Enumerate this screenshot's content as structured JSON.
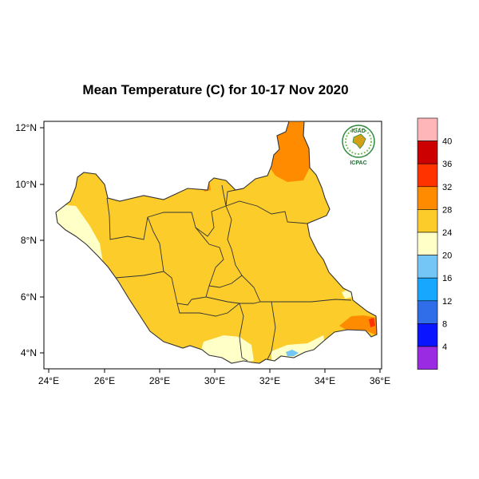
{
  "map": {
    "title": "Mean Temperature (C) for 10-17 Nov 2020",
    "x_ticks": [
      "24°E",
      "26°E",
      "28°E",
      "30°E",
      "32°E",
      "34°E",
      "36°E"
    ],
    "y_ticks": [
      "12°N",
      "10°N",
      "8°N",
      "6°N",
      "4°N"
    ],
    "x_range": [
      24,
      36
    ],
    "y_range": [
      3.4,
      12.2
    ],
    "region": "South Sudan"
  },
  "logo": {
    "top_text": "IGAD",
    "bottom_text": "ICPAC"
  },
  "legend": {
    "labels": [
      "40",
      "36",
      "32",
      "28",
      "24",
      "20",
      "16",
      "12",
      "8",
      "4"
    ],
    "colors": [
      "#ffb6b9",
      "#cc0000",
      "#ff3300",
      "#ff8c00",
      "#fbcc2a",
      "#ffffc8",
      "#73c6f5",
      "#17a7ff",
      "#2f6ee8",
      "#0a14ff",
      "#9a2be2"
    ]
  },
  "palette": {
    "c24_28": "#fbcc2a",
    "c28_32": "#ff8c00",
    "c20_24": "#ffffc8",
    "c16_20": "#73c6f5",
    "c32_36": "#ff3300",
    "boundary": "#333333"
  }
}
